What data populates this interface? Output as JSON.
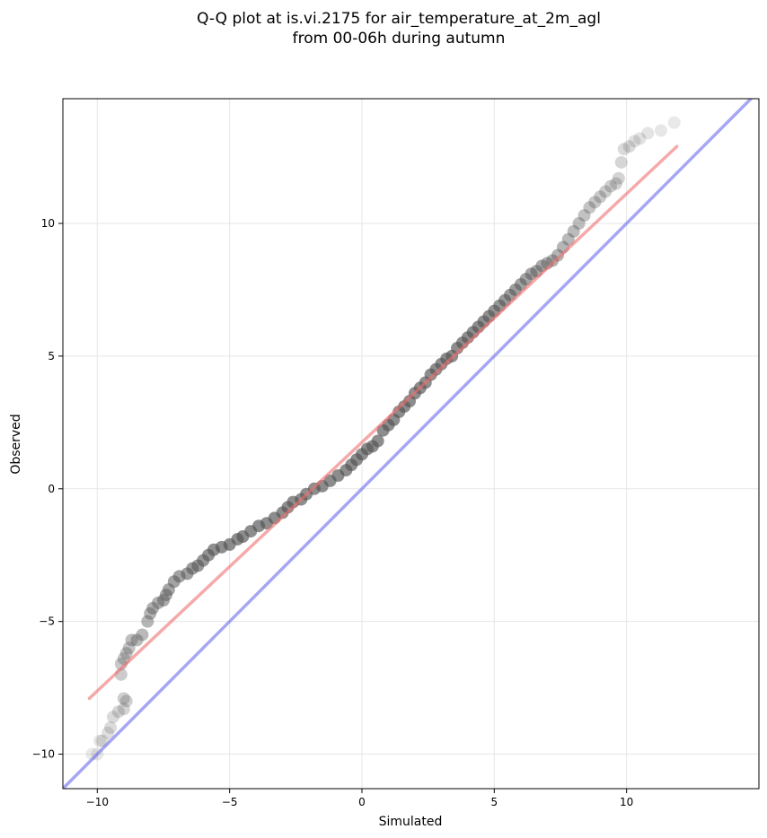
{
  "chart_data": {
    "type": "scatter",
    "title_line1": "Q-Q plot at is.vi.2175 for air_temperature_at_2m_agl",
    "title_line2": "from 00-06h during autumn",
    "xlabel": "Simulated",
    "ylabel": "Observed",
    "xlim": [
      -11.3,
      15.0
    ],
    "ylim": [
      -11.3,
      14.7
    ],
    "xticks": [
      -10,
      -5,
      0,
      5,
      10
    ],
    "yticks": [
      -10,
      -5,
      0,
      5,
      10
    ],
    "xtick_labels": [
      "−10",
      "−5",
      "0",
      "5",
      "10"
    ],
    "ytick_labels": [
      "−10",
      "−5",
      "0",
      "5",
      "10"
    ],
    "grid": true,
    "colors": {
      "points": "#555555",
      "fit_line": "#f07070",
      "identity_line": "#6b6bef",
      "grid": "#e6e6e6"
    },
    "series": [
      {
        "role": "quantiles",
        "points": [
          [
            -10.2,
            -10.0
          ],
          [
            -10.0,
            -10.0
          ],
          [
            -9.9,
            -9.5
          ],
          [
            -9.8,
            -9.5
          ],
          [
            -9.6,
            -9.2
          ],
          [
            -9.5,
            -9.0
          ],
          [
            -9.4,
            -8.6
          ],
          [
            -9.2,
            -8.4
          ],
          [
            -9.0,
            -8.3
          ],
          [
            -8.9,
            -8.0
          ],
          [
            -9.0,
            -7.9
          ],
          [
            -9.1,
            -7.0
          ],
          [
            -9.1,
            -6.6
          ],
          [
            -9.0,
            -6.4
          ],
          [
            -8.9,
            -6.2
          ],
          [
            -8.8,
            -6.0
          ],
          [
            -8.7,
            -5.7
          ],
          [
            -8.5,
            -5.7
          ],
          [
            -8.3,
            -5.5
          ],
          [
            -8.1,
            -5.0
          ],
          [
            -8.0,
            -4.7
          ],
          [
            -7.9,
            -4.5
          ],
          [
            -7.7,
            -4.3
          ],
          [
            -7.5,
            -4.2
          ],
          [
            -7.4,
            -4.0
          ],
          [
            -7.3,
            -3.8
          ],
          [
            -7.1,
            -3.5
          ],
          [
            -6.9,
            -3.3
          ],
          [
            -6.6,
            -3.2
          ],
          [
            -6.4,
            -3.0
          ],
          [
            -6.2,
            -2.9
          ],
          [
            -6.0,
            -2.7
          ],
          [
            -5.8,
            -2.5
          ],
          [
            -5.6,
            -2.3
          ],
          [
            -5.3,
            -2.2
          ],
          [
            -5.0,
            -2.1
          ],
          [
            -4.7,
            -1.9
          ],
          [
            -4.5,
            -1.8
          ],
          [
            -4.2,
            -1.6
          ],
          [
            -3.9,
            -1.4
          ],
          [
            -3.6,
            -1.3
          ],
          [
            -3.3,
            -1.1
          ],
          [
            -3.0,
            -0.9
          ],
          [
            -2.8,
            -0.7
          ],
          [
            -2.6,
            -0.5
          ],
          [
            -2.3,
            -0.4
          ],
          [
            -2.1,
            -0.2
          ],
          [
            -1.8,
            0.0
          ],
          [
            -1.5,
            0.1
          ],
          [
            -1.2,
            0.3
          ],
          [
            -0.9,
            0.5
          ],
          [
            -0.6,
            0.7
          ],
          [
            -0.4,
            0.9
          ],
          [
            -0.2,
            1.1
          ],
          [
            0.0,
            1.3
          ],
          [
            0.2,
            1.5
          ],
          [
            0.4,
            1.6
          ],
          [
            0.6,
            1.8
          ],
          [
            0.8,
            2.2
          ],
          [
            1.0,
            2.4
          ],
          [
            1.2,
            2.6
          ],
          [
            1.4,
            2.9
          ],
          [
            1.6,
            3.1
          ],
          [
            1.8,
            3.3
          ],
          [
            2.0,
            3.6
          ],
          [
            2.2,
            3.8
          ],
          [
            2.4,
            4.0
          ],
          [
            2.6,
            4.3
          ],
          [
            2.8,
            4.5
          ],
          [
            3.0,
            4.7
          ],
          [
            3.2,
            4.9
          ],
          [
            3.4,
            5.0
          ],
          [
            3.6,
            5.3
          ],
          [
            3.8,
            5.5
          ],
          [
            4.0,
            5.7
          ],
          [
            4.2,
            5.9
          ],
          [
            4.4,
            6.1
          ],
          [
            4.6,
            6.3
          ],
          [
            4.8,
            6.5
          ],
          [
            5.0,
            6.7
          ],
          [
            5.2,
            6.9
          ],
          [
            5.4,
            7.1
          ],
          [
            5.6,
            7.3
          ],
          [
            5.8,
            7.5
          ],
          [
            6.0,
            7.7
          ],
          [
            6.2,
            7.9
          ],
          [
            6.4,
            8.1
          ],
          [
            6.6,
            8.2
          ],
          [
            6.8,
            8.4
          ],
          [
            7.0,
            8.5
          ],
          [
            7.2,
            8.6
          ],
          [
            7.4,
            8.8
          ],
          [
            7.6,
            9.1
          ],
          [
            7.8,
            9.4
          ],
          [
            8.0,
            9.7
          ],
          [
            8.2,
            10.0
          ],
          [
            8.4,
            10.3
          ],
          [
            8.6,
            10.6
          ],
          [
            8.8,
            10.8
          ],
          [
            9.0,
            11.0
          ],
          [
            9.2,
            11.2
          ],
          [
            9.4,
            11.4
          ],
          [
            9.6,
            11.5
          ],
          [
            9.7,
            11.7
          ],
          [
            9.8,
            12.3
          ],
          [
            9.9,
            12.8
          ],
          [
            10.1,
            12.9
          ],
          [
            10.3,
            13.1
          ],
          [
            10.5,
            13.2
          ],
          [
            10.8,
            13.4
          ],
          [
            11.3,
            13.5
          ],
          [
            11.8,
            13.8
          ]
        ]
      },
      {
        "role": "fit-line",
        "x": [
          -10.3,
          11.9
        ],
        "y": [
          -7.9,
          12.9
        ]
      },
      {
        "role": "identity-line",
        "x": [
          -11.3,
          15.0
        ],
        "y": [
          -11.3,
          15.0
        ]
      }
    ]
  }
}
